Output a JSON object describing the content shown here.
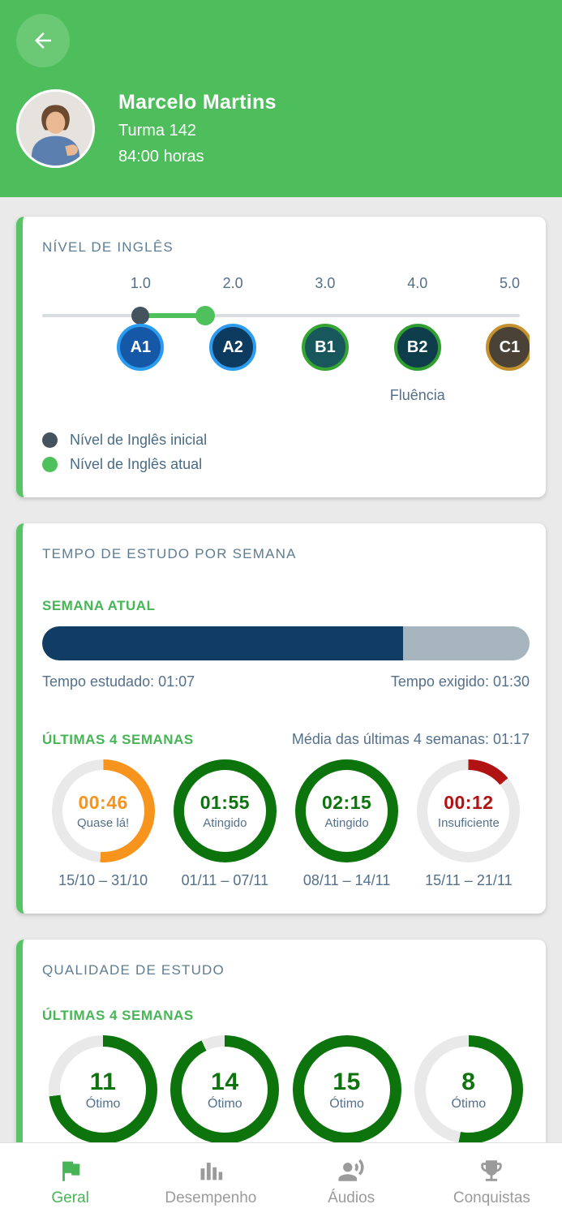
{
  "theme": {
    "header_green": "#4dbe5b",
    "accent_green": "#47b556",
    "card_border_green": "#57c465",
    "title_color": "#5e7d93",
    "text_muted": "#54708b",
    "progress_navy": "#113c64",
    "progress_track": "#a6b4bd",
    "ring_track": "#e9e9ea",
    "initial_dot": "#44535e",
    "current_dot": "#4fc15c",
    "nav_inactive": "#9b9b9b"
  },
  "header": {
    "name": "Marcelo Martins",
    "class_label": "Turma 142",
    "hours_label": "84:00 horas"
  },
  "level_card": {
    "title": "NÍVEL DE INGLÊS",
    "scale_labels": [
      {
        "label": "1.0"
      },
      {
        "label": "2.0"
      },
      {
        "label": "3.0"
      },
      {
        "label": "4.0"
      },
      {
        "label": "5.0"
      }
    ],
    "slider": {
      "initial_pct": 20.2,
      "current_pct": 33.5
    },
    "levels": [
      {
        "label": "A1",
        "fill": "#1558a8",
        "ring": "#2b9cf0"
      },
      {
        "label": "A2",
        "fill": "#0d3a5f",
        "ring": "#2b9cf0"
      },
      {
        "label": "B1",
        "fill": "#18575c",
        "ring": "#35a433"
      },
      {
        "label": "B2",
        "fill": "#0e3d4b",
        "ring": "#2f9e2e"
      },
      {
        "label": "C1",
        "fill": "#4a4137",
        "ring": "#c4912e"
      }
    ],
    "fluency_label": "Fluência",
    "legend": [
      {
        "label": "Nível de Inglês inicial",
        "color": "#44535e"
      },
      {
        "label": "Nível de Inglês atual",
        "color": "#4fc15c"
      }
    ]
  },
  "study_time_card": {
    "title": "TEMPO DE ESTUDO POR SEMANA",
    "current_week_label": "SEMANA ATUAL",
    "progress": {
      "pct": 74,
      "studied_label": "Tempo estudado: 01:07",
      "required_label": "Tempo exigido: 01:30"
    },
    "last_weeks_label": "ÚLTIMAS 4 SEMANAS",
    "average_label": "Média das últimas 4 semanas: 01:17",
    "weeks": [
      {
        "time": "00:46",
        "status": "Quase lá!",
        "color": "#f7941e",
        "pct": 51,
        "range": "15/10 – 31/10"
      },
      {
        "time": "01:55",
        "status": "Atingido",
        "color": "#0d730d",
        "pct": 100,
        "range": "01/11 – 07/11"
      },
      {
        "time": "02:15",
        "status": "Atingido",
        "color": "#0d730d",
        "pct": 100,
        "range": "08/11 – 14/11"
      },
      {
        "time": "00:12",
        "status": "Insuficiente",
        "color": "#b11212",
        "pct": 14,
        "range": "15/11 – 21/11"
      }
    ]
  },
  "quality_card": {
    "title": "QUALIDADE DE ESTUDO",
    "last_weeks_label": "ÚLTIMAS 4 SEMANAS",
    "weeks": [
      {
        "time": "11",
        "status": "Ótimo",
        "color": "#0d730d",
        "pct": 73
      },
      {
        "time": "14",
        "status": "Ótimo",
        "color": "#0d730d",
        "pct": 93
      },
      {
        "time": "15",
        "status": "Ótimo",
        "color": "#0d730d",
        "pct": 100
      },
      {
        "time": "8",
        "status": "Ótimo",
        "color": "#0d730d",
        "pct": 53
      }
    ]
  },
  "bottom_nav": {
    "items": [
      {
        "label": "Geral",
        "icon": "flag-icon",
        "active": true
      },
      {
        "label": "Desempenho",
        "icon": "bar-chart-icon",
        "active": false
      },
      {
        "label": "Áudios",
        "icon": "voice-icon",
        "active": false
      },
      {
        "label": "Conquistas",
        "icon": "trophy-icon",
        "active": false
      }
    ]
  }
}
